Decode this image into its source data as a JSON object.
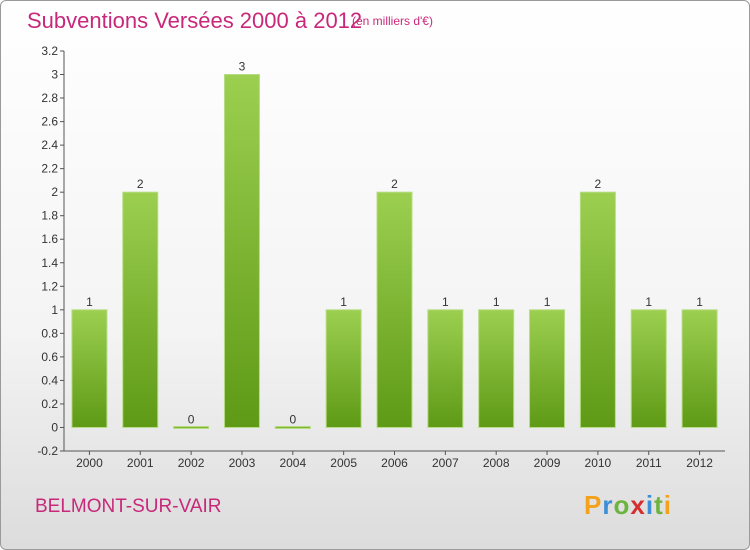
{
  "header": {
    "title": "Subventions Versées 2000 à 2012",
    "subtitle": "(en milliers d'€)"
  },
  "footer": {
    "commune": "BELMONT-SUR-VAIR",
    "logo_text": "Proxiti",
    "logo_letters": [
      {
        "ch": "P",
        "color": "#f4a21b"
      },
      {
        "ch": "r",
        "color": "#3c8fd6"
      },
      {
        "ch": "o",
        "color": "#6db33f"
      },
      {
        "ch": "x",
        "color": "#d62e2e"
      },
      {
        "ch": "i",
        "color": "#3c8fd6"
      },
      {
        "ch": "t",
        "color": "#6db33f"
      },
      {
        "ch": "i",
        "color": "#f4a21b"
      }
    ]
  },
  "colors": {
    "title": "#c8287a",
    "bar_top": "#9ccf50",
    "bar_bottom": "#5e9a16"
  },
  "chart_data": {
    "type": "bar",
    "title": "Subventions Versées 2000 à 2012",
    "subtitle": "(en milliers d'€)",
    "categories": [
      "2000",
      "2001",
      "2002",
      "2003",
      "2004",
      "2005",
      "2006",
      "2007",
      "2008",
      "2009",
      "2010",
      "2011",
      "2012"
    ],
    "values": [
      1,
      2,
      0,
      3,
      0,
      1,
      2,
      1,
      1,
      1,
      2,
      1,
      1
    ],
    "data_labels": [
      "1",
      "2",
      "0",
      "3",
      "0",
      "1",
      "2",
      "1",
      "1",
      "1",
      "2",
      "1",
      "1"
    ],
    "ylim": [
      -0.2,
      3.2
    ],
    "yticks": [
      -0.2,
      0,
      0.2,
      0.4,
      0.6,
      0.8,
      1,
      1.2,
      1.4,
      1.6,
      1.8,
      2,
      2.2,
      2.4,
      2.6,
      2.8,
      3,
      3.2
    ],
    "ytick_labels": [
      "-0.2",
      "0",
      "0.2",
      "0.4",
      "0.6",
      "0.8",
      "1",
      "1.2",
      "1.4",
      "1.6",
      "1.8",
      "2",
      "2.2",
      "2.4",
      "2.6",
      "2.8",
      "3",
      "3.2"
    ],
    "grid": false
  }
}
